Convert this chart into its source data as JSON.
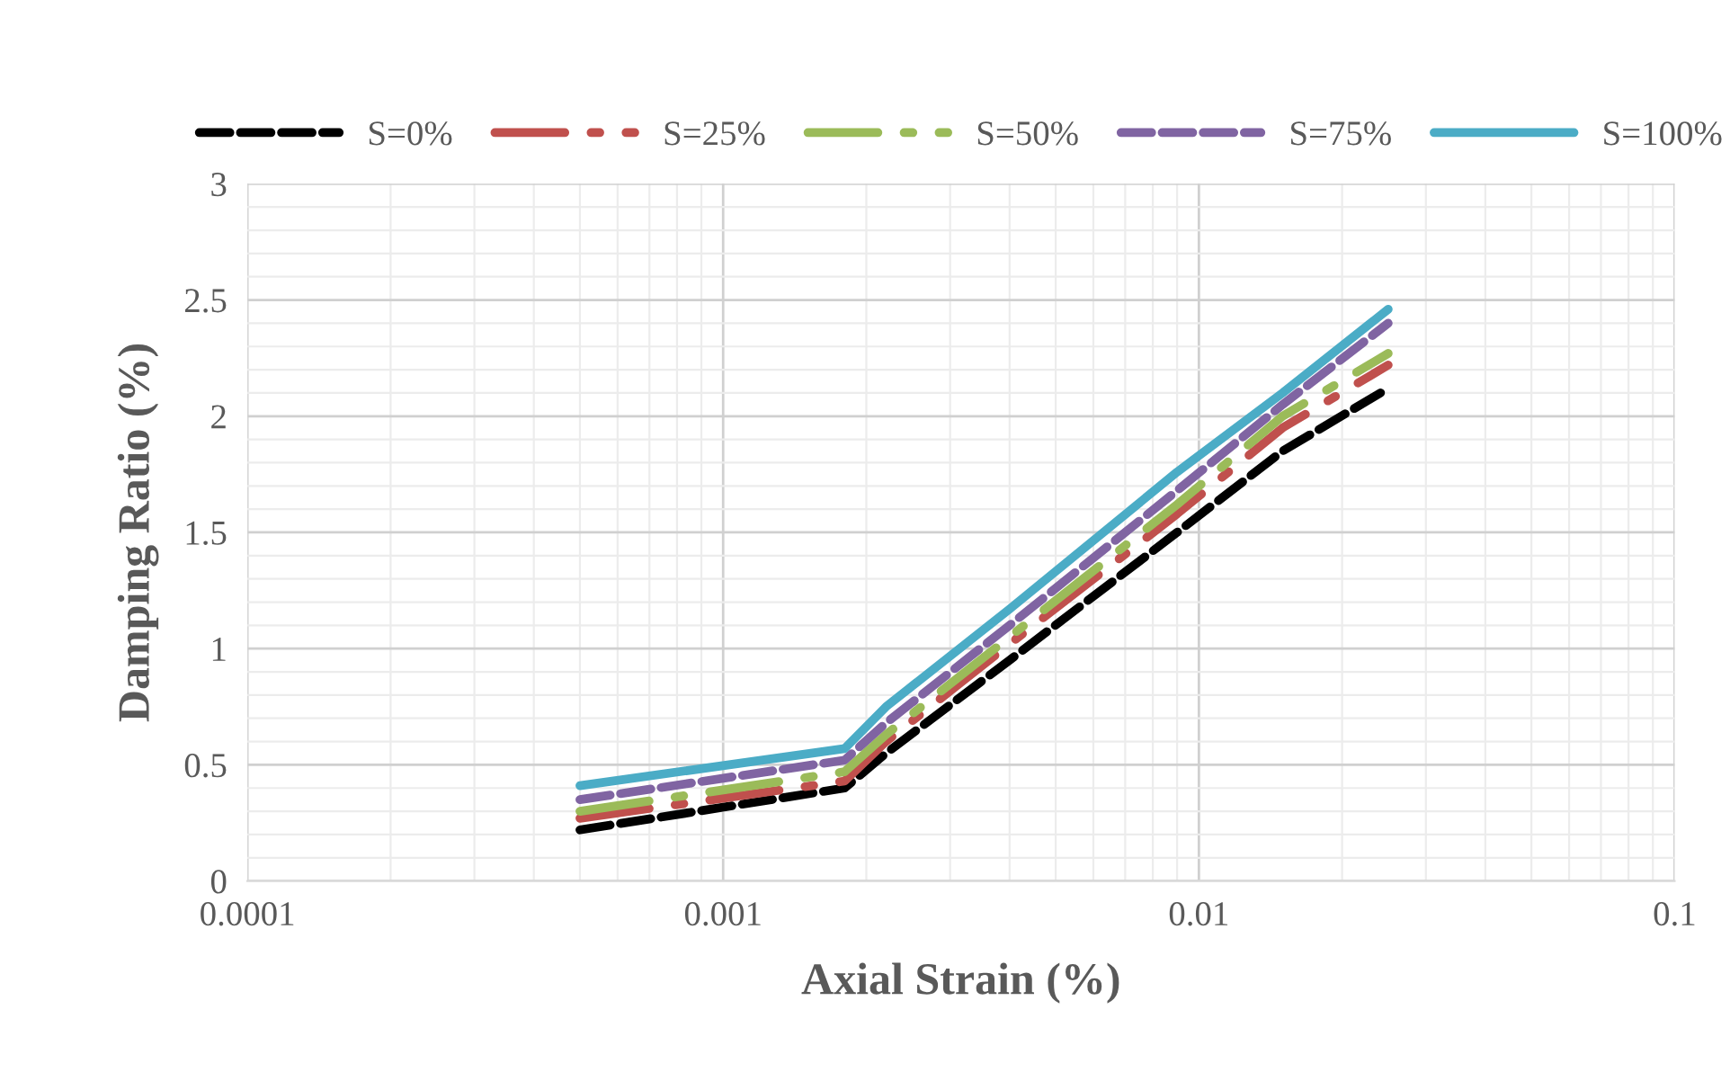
{
  "chart_data": {
    "type": "line",
    "xlabel": "Axial Strain (%)",
    "ylabel": "Damping Ratio (%)",
    "x": [
      0.0005,
      0.0018,
      0.0022,
      0.004,
      0.009,
      0.015,
      0.025
    ],
    "series": [
      {
        "name": "S=0%",
        "color": "#000000",
        "line_style": "dashed",
        "values": [
          0.22,
          0.4,
          0.55,
          0.95,
          1.5,
          1.85,
          2.12
        ]
      },
      {
        "name": "S=25%",
        "color": "#c0504d",
        "line_style": "dashdot",
        "values": [
          0.27,
          0.43,
          0.6,
          1.02,
          1.58,
          1.95,
          2.22
        ]
      },
      {
        "name": "S=50%",
        "color": "#9bbb59",
        "line_style": "dashdot",
        "values": [
          0.3,
          0.47,
          0.63,
          1.05,
          1.62,
          2.0,
          2.27
        ]
      },
      {
        "name": "S=75%",
        "color": "#8064a2",
        "line_style": "dashed",
        "values": [
          0.35,
          0.52,
          0.68,
          1.1,
          1.68,
          2.05,
          2.4
        ]
      },
      {
        "name": "S=100%",
        "color": "#4bacc6",
        "line_style": "solid",
        "values": [
          0.41,
          0.57,
          0.75,
          1.17,
          1.76,
          2.1,
          2.46
        ]
      }
    ],
    "log": "x",
    "xlim": [
      0.0001,
      0.1
    ],
    "xticks": [
      0.0001,
      0.001,
      0.01,
      0.1
    ],
    "ylim": [
      0,
      3
    ],
    "yticks": [
      0,
      0.5,
      1,
      1.5,
      2,
      2.5,
      3
    ],
    "grid": true,
    "legend": "top",
    "marker": "none"
  }
}
